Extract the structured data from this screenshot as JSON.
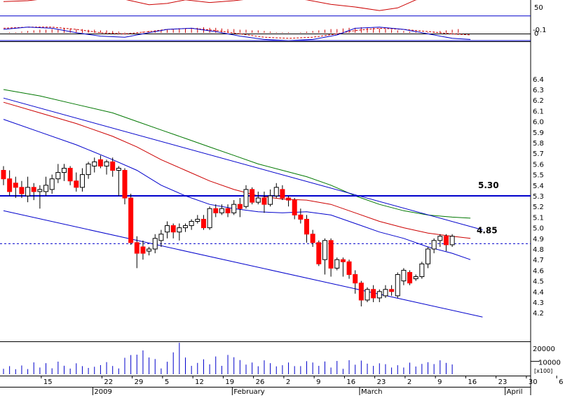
{
  "chart_data": {
    "type": "candlestick",
    "colors": {
      "up_body": "#ffffff",
      "down_body": "#ff0000",
      "candle_outline": "#000000",
      "ma_short": "#0000cc",
      "ma_mid": "#cc0000",
      "ma_long": "#007700",
      "trendline": "#0000cc",
      "level_line": "#0000cc",
      "oscillator": "#cc0000",
      "histogram": "#cc0000",
      "macd": "#0000cc",
      "signal": "#cc0000",
      "volume": "#0000cc",
      "separator": "#000000"
    },
    "price": {
      "ylim": [
        4.1,
        6.6
      ],
      "ticks": [
        "6.4",
        "6.3",
        "6.2",
        "6.1",
        "6.0",
        "5.9",
        "5.8",
        "5.7",
        "5.6",
        "5.5",
        "5.4",
        "5.3",
        "5.2",
        "5.1",
        "5.0",
        "4.9",
        "4.8",
        "4.7",
        "4.6",
        "4.5",
        "4.4",
        "4.3",
        "4.2"
      ],
      "candles": [
        [
          5.54,
          5.58,
          5.4,
          5.46
        ],
        [
          5.46,
          5.54,
          5.3,
          5.34
        ],
        [
          5.42,
          5.48,
          5.28,
          5.38
        ],
        [
          5.38,
          5.44,
          5.28,
          5.32
        ],
        [
          5.3,
          5.48,
          5.24,
          5.38
        ],
        [
          5.38,
          5.42,
          5.26,
          5.34
        ],
        [
          5.34,
          5.4,
          5.18,
          5.36
        ],
        [
          5.34,
          5.48,
          5.3,
          5.4
        ],
        [
          5.36,
          5.5,
          5.32,
          5.46
        ],
        [
          5.46,
          5.6,
          5.42,
          5.52
        ],
        [
          5.52,
          5.6,
          5.44,
          5.56
        ],
        [
          5.56,
          5.58,
          5.4,
          5.44
        ],
        [
          5.44,
          5.52,
          5.34,
          5.38
        ],
        [
          5.38,
          5.56,
          5.34,
          5.5
        ],
        [
          5.5,
          5.62,
          5.46,
          5.6
        ],
        [
          5.58,
          5.66,
          5.52,
          5.62
        ],
        [
          5.64,
          5.68,
          5.56,
          5.58
        ],
        [
          5.58,
          5.64,
          5.5,
          5.62
        ],
        [
          5.62,
          5.66,
          5.48,
          5.54
        ],
        [
          5.54,
          5.58,
          5.3,
          5.56
        ],
        [
          5.54,
          5.56,
          5.22,
          5.28
        ],
        [
          5.28,
          5.32,
          4.84,
          4.86
        ],
        [
          4.86,
          4.92,
          4.62,
          4.76
        ],
        [
          4.82,
          4.88,
          4.7,
          4.76
        ],
        [
          4.78,
          4.82,
          4.74,
          4.8
        ],
        [
          4.8,
          4.94,
          4.76,
          4.9
        ],
        [
          4.88,
          4.98,
          4.82,
          4.94
        ],
        [
          4.96,
          5.06,
          4.9,
          5.02
        ],
        [
          5.02,
          5.04,
          4.9,
          4.96
        ],
        [
          4.96,
          5.04,
          4.88,
          5.0
        ],
        [
          5.0,
          5.04,
          4.96,
          5.02
        ],
        [
          5.02,
          5.08,
          4.98,
          5.06
        ],
        [
          5.06,
          5.12,
          5.04,
          5.08
        ],
        [
          5.08,
          5.12,
          4.98,
          5.0
        ],
        [
          5.0,
          5.2,
          4.98,
          5.18
        ],
        [
          5.18,
          5.22,
          5.1,
          5.14
        ],
        [
          5.14,
          5.22,
          5.12,
          5.18
        ],
        [
          5.18,
          5.22,
          5.1,
          5.14
        ],
        [
          5.14,
          5.26,
          5.12,
          5.22
        ],
        [
          5.22,
          5.28,
          5.1,
          5.18
        ],
        [
          5.2,
          5.4,
          5.18,
          5.36
        ],
        [
          5.36,
          5.38,
          5.22,
          5.24
        ],
        [
          5.24,
          5.34,
          5.22,
          5.28
        ],
        [
          5.28,
          5.34,
          5.14,
          5.22
        ],
        [
          5.22,
          5.36,
          5.2,
          5.3
        ],
        [
          5.3,
          5.42,
          5.28,
          5.38
        ],
        [
          5.36,
          5.4,
          5.26,
          5.28
        ],
        [
          5.28,
          5.3,
          5.2,
          5.26
        ],
        [
          5.26,
          5.28,
          5.08,
          5.12
        ],
        [
          5.12,
          5.18,
          5.04,
          5.08
        ],
        [
          5.08,
          5.12,
          4.86,
          4.94
        ],
        [
          4.94,
          4.98,
          4.82,
          4.86
        ],
        [
          4.86,
          4.88,
          4.64,
          4.66
        ],
        [
          4.7,
          4.9,
          4.56,
          4.88
        ],
        [
          4.88,
          4.9,
          4.54,
          4.62
        ],
        [
          4.62,
          4.72,
          4.6,
          4.7
        ],
        [
          4.7,
          4.72,
          4.54,
          4.68
        ],
        [
          4.68,
          4.7,
          4.52,
          4.56
        ],
        [
          4.56,
          4.6,
          4.38,
          4.48
        ],
        [
          4.48,
          4.5,
          4.26,
          4.32
        ],
        [
          4.32,
          4.44,
          4.3,
          4.42
        ],
        [
          4.42,
          4.46,
          4.3,
          4.34
        ],
        [
          4.34,
          4.42,
          4.3,
          4.4
        ],
        [
          4.36,
          4.46,
          4.34,
          4.42
        ],
        [
          4.42,
          4.46,
          4.36,
          4.4
        ],
        [
          4.36,
          4.58,
          4.34,
          4.56
        ],
        [
          4.5,
          4.62,
          4.46,
          4.6
        ],
        [
          4.58,
          4.6,
          4.46,
          4.48
        ],
        [
          4.52,
          4.56,
          4.5,
          4.54
        ],
        [
          4.54,
          4.68,
          4.52,
          4.66
        ],
        [
          4.66,
          4.82,
          4.62,
          4.8
        ],
        [
          4.8,
          4.9,
          4.76,
          4.88
        ],
        [
          4.88,
          4.94,
          4.82,
          4.92
        ],
        [
          4.92,
          4.94,
          4.78,
          4.84
        ],
        [
          4.84,
          4.94,
          4.82,
          4.92
        ]
      ],
      "ma_short": [
        [
          0,
          6.02
        ],
        [
          6,
          5.9
        ],
        [
          12,
          5.78
        ],
        [
          18,
          5.64
        ],
        [
          22,
          5.54
        ],
        [
          26,
          5.4
        ],
        [
          30,
          5.3
        ],
        [
          34,
          5.22
        ],
        [
          38,
          5.18
        ],
        [
          42,
          5.15
        ],
        [
          46,
          5.14
        ],
        [
          50,
          5.15
        ],
        [
          54,
          5.12
        ],
        [
          58,
          5.04
        ],
        [
          62,
          4.96
        ],
        [
          66,
          4.9
        ],
        [
          70,
          4.82
        ],
        [
          74,
          4.76
        ],
        [
          77,
          4.7
        ]
      ],
      "ma_mid": [
        [
          0,
          6.18
        ],
        [
          6,
          6.08
        ],
        [
          12,
          5.98
        ],
        [
          18,
          5.86
        ],
        [
          22,
          5.76
        ],
        [
          26,
          5.64
        ],
        [
          30,
          5.54
        ],
        [
          34,
          5.44
        ],
        [
          38,
          5.36
        ],
        [
          42,
          5.3
        ],
        [
          46,
          5.27
        ],
        [
          50,
          5.26
        ],
        [
          54,
          5.22
        ],
        [
          58,
          5.14
        ],
        [
          62,
          5.06
        ],
        [
          66,
          5.0
        ],
        [
          70,
          4.95
        ],
        [
          74,
          4.92
        ],
        [
          77,
          4.9
        ]
      ],
      "ma_long": [
        [
          0,
          6.3
        ],
        [
          6,
          6.24
        ],
        [
          12,
          6.16
        ],
        [
          18,
          6.08
        ],
        [
          22,
          6.0
        ],
        [
          26,
          5.92
        ],
        [
          30,
          5.84
        ],
        [
          34,
          5.76
        ],
        [
          38,
          5.68
        ],
        [
          42,
          5.6
        ],
        [
          46,
          5.54
        ],
        [
          50,
          5.48
        ],
        [
          54,
          5.4
        ],
        [
          58,
          5.3
        ],
        [
          62,
          5.22
        ],
        [
          66,
          5.16
        ],
        [
          70,
          5.12
        ],
        [
          74,
          5.1
        ],
        [
          77,
          5.09
        ]
      ],
      "trend_upper": [
        [
          0,
          6.22
        ],
        [
          79,
          4.98
        ]
      ],
      "trend_lower": [
        [
          0,
          5.16
        ],
        [
          79,
          4.16
        ]
      ],
      "level_solid": 5.3,
      "level_dashed": 4.85,
      "annotations": [
        "5.30",
        "4.85"
      ]
    },
    "oscillator": {
      "ticks": [
        "50",
        "0"
      ],
      "points": [
        [
          0,
          62
        ],
        [
          4,
          64
        ],
        [
          8,
          70
        ],
        [
          12,
          68
        ],
        [
          16,
          72
        ],
        [
          20,
          67
        ],
        [
          24,
          55
        ],
        [
          27,
          58
        ],
        [
          30,
          66
        ],
        [
          34,
          60
        ],
        [
          38,
          64
        ],
        [
          42,
          70
        ],
        [
          46,
          72
        ],
        [
          50,
          66
        ],
        [
          54,
          56
        ],
        [
          58,
          50
        ],
        [
          62,
          42
        ],
        [
          65,
          48
        ],
        [
          68,
          66
        ],
        [
          72,
          72
        ],
        [
          76,
          70
        ],
        [
          78,
          74
        ]
      ],
      "ref_line": 30,
      "histogram": [
        0,
        1,
        1,
        2,
        3,
        4,
        5,
        5,
        6,
        6,
        7,
        7,
        6,
        6,
        5,
        5,
        4,
        4,
        3,
        2,
        1,
        0,
        1,
        2,
        3,
        4,
        4,
        5,
        6,
        6,
        7,
        8,
        8,
        9,
        8,
        8,
        7,
        6,
        6,
        5,
        5,
        4,
        4,
        3,
        2,
        1,
        1,
        1,
        0,
        1,
        2,
        3,
        4,
        5,
        6,
        6,
        7,
        8,
        8,
        9,
        8,
        8,
        7,
        6,
        5,
        4,
        3,
        2,
        2,
        1,
        1,
        2,
        3,
        4,
        5,
        6
      ]
    },
    "macd": {
      "ticks": [
        "-0.1"
      ],
      "macd_line": [
        [
          0,
          -0.1
        ],
        [
          4,
          -0.12
        ],
        [
          8,
          -0.11
        ],
        [
          12,
          -0.07
        ],
        [
          16,
          -0.04
        ],
        [
          20,
          -0.03
        ],
        [
          24,
          -0.07
        ],
        [
          27,
          -0.1
        ],
        [
          31,
          -0.11
        ],
        [
          35,
          -0.08
        ],
        [
          39,
          -0.04
        ],
        [
          43,
          -0.01
        ],
        [
          47,
          0.0
        ],
        [
          51,
          -0.01
        ],
        [
          55,
          -0.05
        ],
        [
          58,
          -0.11
        ],
        [
          62,
          -0.12
        ],
        [
          66,
          -0.1
        ],
        [
          70,
          -0.06
        ],
        [
          74,
          -0.02
        ],
        [
          77,
          -0.01
        ]
      ],
      "signal_line": [
        [
          0,
          -0.11
        ],
        [
          4,
          -0.12
        ],
        [
          8,
          -0.12
        ],
        [
          12,
          -0.1
        ],
        [
          16,
          -0.07
        ],
        [
          20,
          -0.06
        ],
        [
          24,
          -0.08
        ],
        [
          27,
          -0.1
        ],
        [
          31,
          -0.11
        ],
        [
          35,
          -0.09
        ],
        [
          39,
          -0.06
        ],
        [
          43,
          -0.03
        ],
        [
          47,
          -0.02
        ],
        [
          51,
          -0.03
        ],
        [
          55,
          -0.06
        ],
        [
          58,
          -0.09
        ],
        [
          62,
          -0.11
        ],
        [
          66,
          -0.1
        ],
        [
          70,
          -0.08
        ],
        [
          74,
          -0.06
        ],
        [
          77,
          -0.05
        ]
      ],
      "zero_line": 0
    },
    "volume": {
      "ticks": [
        "20000",
        "10000"
      ],
      "unit": "x100",
      "values": [
        4200,
        6300,
        3900,
        6800,
        4000,
        9200,
        5200,
        8600,
        4600,
        9800,
        6600,
        4400,
        8500,
        6300,
        4900,
        5800,
        7100,
        9400,
        6400,
        4500,
        12800,
        14900,
        15200,
        18500,
        13000,
        11800,
        4500,
        9700,
        17000,
        24500,
        13000,
        6500,
        8800,
        11600,
        7700,
        13800,
        6500,
        15000,
        13200,
        11000,
        7500,
        9100,
        6200,
        10800,
        8600,
        6100,
        7000,
        9100,
        6300,
        6300,
        10100,
        9100,
        6500,
        9900,
        5200,
        10300,
        4200,
        10900,
        7400,
        10600,
        8200,
        6500,
        8500,
        7800,
        5200,
        7000,
        5200,
        9000,
        6000,
        8000,
        9300,
        7900,
        10800,
        8800,
        7600
      ]
    },
    "x_ticks": [
      "15",
      "22",
      "29",
      "5",
      "12",
      "19",
      "26",
      "2",
      "9",
      "16",
      "23",
      "2",
      "9",
      "16",
      "23",
      "30",
      "6"
    ],
    "month_labels": [
      "2009",
      "February",
      "March",
      "April"
    ]
  }
}
